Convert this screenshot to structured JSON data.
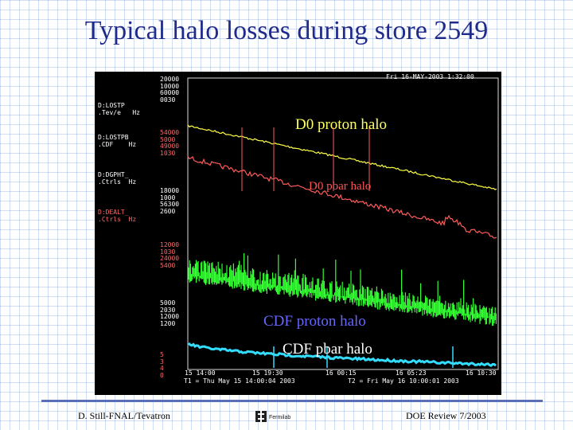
{
  "slide": {
    "title": "Typical halo losses during store 2549",
    "footer_left": "D. Still-FNAL/Tevatron",
    "footer_right": "DOE Review 7/2003",
    "logo_text": "Fermilab"
  },
  "screen": {
    "timestamp": "Fri 16-MAY-2003 1:32:00",
    "time_ticks": [
      "15 14:00",
      "15 19:30",
      "16 00:15",
      "16 05:23",
      "16 10:30"
    ],
    "time_range_t1": "T1 = Thu May 15 14:00:04 2003",
    "time_range_t2": "T2 = Fri May 16 10:00:01 2003",
    "channels": [
      {
        "name": "D:LOSTP",
        "units": ".Tev/e   Hz",
        "color": "#ffffff"
      },
      {
        "name": "D:LOSTPB",
        "units": ".CDF    Hz",
        "color": "#ffffff"
      },
      {
        "name": "D:DGPHT_",
        "units": ".Ctrls  Hz",
        "color": "#ffffff"
      },
      {
        "name": "D:DEALT_",
        "units": ".Ctrls  Hz",
        "color": "#ff6666"
      }
    ],
    "scale_groups": [
      {
        "values": [
          "20000",
          "10000",
          "60000",
          "0030"
        ],
        "color": "#ffffff"
      },
      {
        "values": [
          "54000",
          "5000",
          "49000",
          "1030"
        ],
        "color": "#ff6666"
      },
      {
        "values": [
          "18000",
          "1000",
          "56300",
          "2600"
        ],
        "color": "#ffffff"
      },
      {
        "values": [
          "12000",
          "1030",
          "24000",
          "5400"
        ],
        "color": "#ff6666"
      },
      {
        "values": [
          "5000",
          "2030",
          "12000",
          "1200"
        ],
        "color": "#ffffff"
      },
      {
        "values": [
          "5",
          "3",
          "4",
          "0"
        ],
        "color": "#ff6666"
      }
    ],
    "annotations": {
      "d0_proton": "D0 proton halo",
      "d0_pbar": "D0 pbar halo",
      "cdf_proton": "CDF proton halo",
      "cdf_pbar": "CDF pbar halo"
    },
    "trace_colors": {
      "d0_proton": "#ffff44",
      "d0_pbar": "#ff5a5a",
      "cdf_proton": "#33ff33",
      "cdf_pbar": "#33ddff"
    }
  }
}
